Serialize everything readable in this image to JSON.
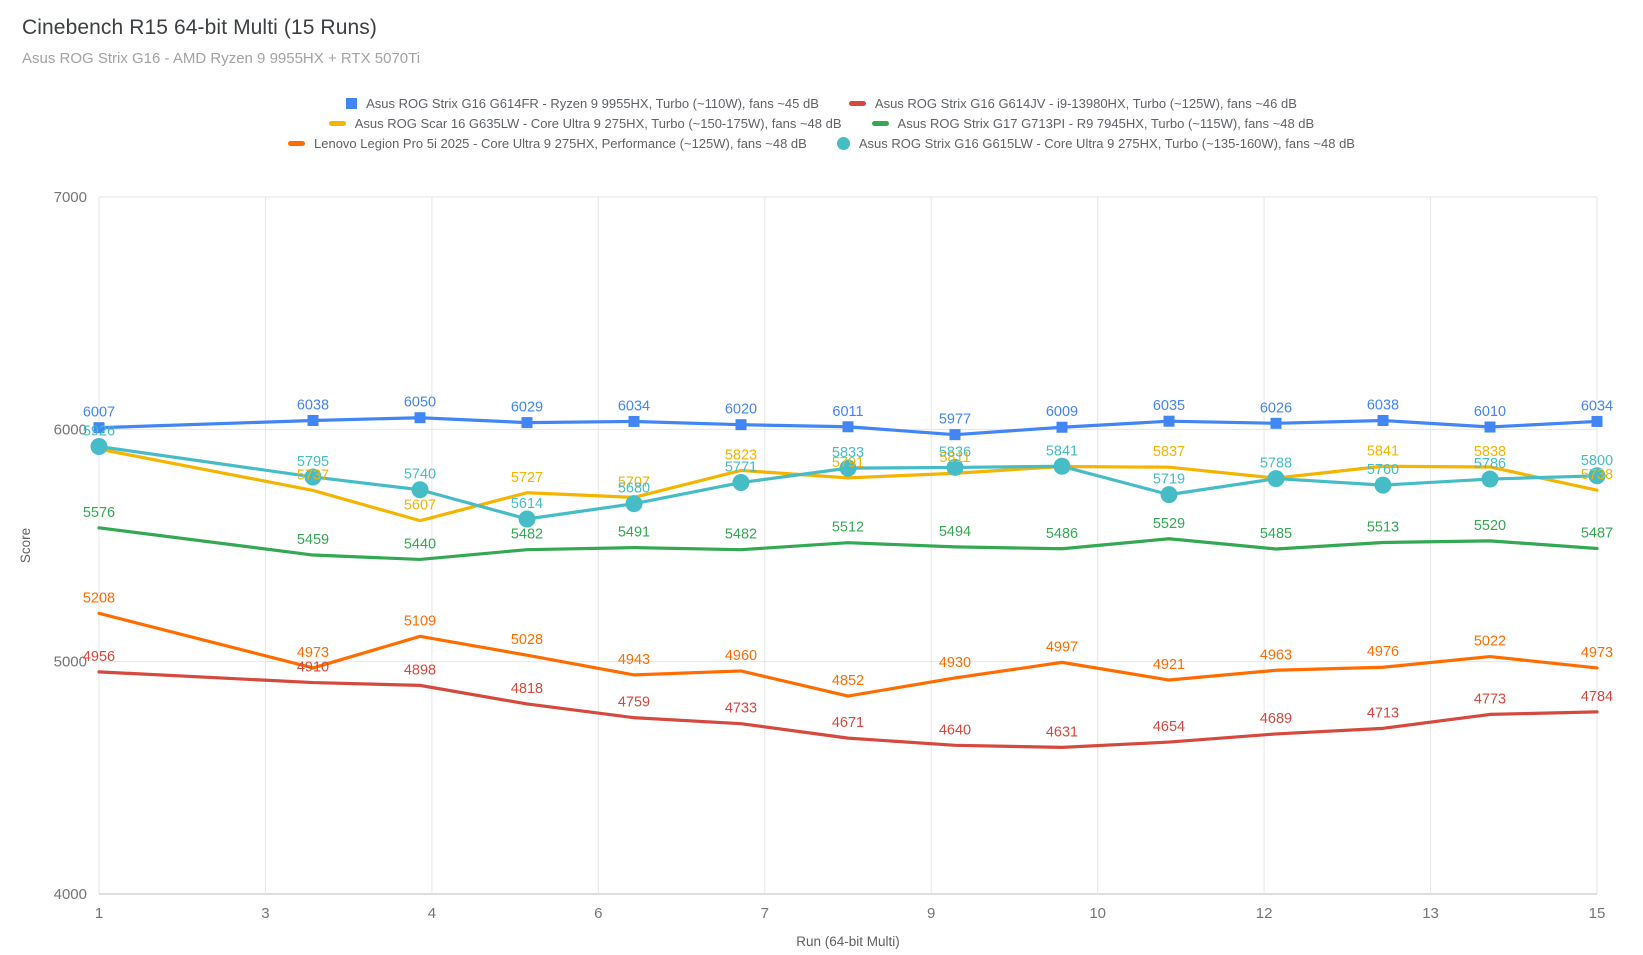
{
  "header": {
    "title": "Cinebench R15 64-bit Multi (15 Runs)",
    "subtitle": "Asus ROG Strix G16 - AMD Ryzen 9 9955HX + RTX 5070Ti"
  },
  "chart_data": {
    "type": "line",
    "title": "Cinebench R15 64-bit Multi (15 Runs)",
    "subtitle": "Asus ROG Strix G16 - AMD Ryzen 9 9955HX + RTX 5070Ti",
    "xlabel": "Run (64-bit Multi)",
    "ylabel": "Score",
    "x_min": 1,
    "x_max": 15,
    "y_min": 4000,
    "y_max": 7000,
    "y_ticks": [
      4000,
      5000,
      6000,
      7000
    ],
    "x_gridlines": [
      {
        "v": 1,
        "label": "1"
      },
      {
        "v": 2.5556,
        "label": "3"
      },
      {
        "v": 4.1111,
        "label": "4"
      },
      {
        "v": 5.6667,
        "label": "6"
      },
      {
        "v": 7.2222,
        "label": "7"
      },
      {
        "v": 8.7778,
        "label": "9"
      },
      {
        "v": 10.3333,
        "label": "10"
      },
      {
        "v": 11.8889,
        "label": "12"
      },
      {
        "v": 13.4444,
        "label": "13"
      },
      {
        "v": 15,
        "label": "15"
      }
    ],
    "runs": [
      1,
      3,
      4,
      5,
      6,
      7,
      8,
      9,
      10,
      11,
      12,
      13,
      14,
      15
    ],
    "note": "run 2 has no data point; labels for yellow series at runs 1, 10, 12 are hidden behind overlapping teal labels (values estimated from line position)",
    "draw_order": [
      1,
      4,
      3,
      2,
      5,
      0
    ],
    "series": [
      {
        "key": "g614fr",
        "name": "Asus ROG Strix G16 G614FR - Ryzen 9 9955HX, Turbo (~110W), fans ~45 dB",
        "color": "#4285f4",
        "marker": "square",
        "values": [
          6007,
          6038,
          6050,
          6029,
          6034,
          6020,
          6011,
          5977,
          6009,
          6035,
          6026,
          6038,
          6010,
          6034
        ],
        "hidden_label_runs": []
      },
      {
        "key": "g614jv",
        "name": "Asus ROG Strix G16 G614JV - i9-13980HX, Turbo (~125W), fans ~46 dB",
        "color": "#d5493e",
        "marker": "dash",
        "values": [
          4956,
          4910,
          4898,
          4818,
          4759,
          4733,
          4671,
          4640,
          4631,
          4654,
          4689,
          4713,
          4773,
          4784
        ],
        "hidden_label_runs": []
      },
      {
        "key": "g635lw",
        "name": "Asus ROG Scar 16 G635LW - Core Ultra 9 275HX, Turbo (~150-175W), fans ~48 dB",
        "color": "#f4b400",
        "marker": "dash",
        "values": [
          5915,
          5737,
          5607,
          5727,
          5707,
          5823,
          5791,
          5811,
          5840,
          5837,
          5790,
          5841,
          5838,
          5738
        ],
        "hidden_label_runs": [
          1,
          10,
          12
        ]
      },
      {
        "key": "g713pi",
        "name": "Asus ROG Strix G17 G713PI - R9 7945HX, Turbo (~115W), fans ~48 dB",
        "color": "#34a853",
        "marker": "dash",
        "values": [
          5576,
          5459,
          5440,
          5482,
          5491,
          5482,
          5512,
          5494,
          5486,
          5529,
          5485,
          5513,
          5520,
          5487
        ],
        "hidden_label_runs": []
      },
      {
        "key": "legion5i",
        "name": "Lenovo Legion Pro 5i 2025 - Core Ultra 9 275HX, Performance (~125W), fans ~48 dB",
        "color": "#ff6d01",
        "marker": "dash",
        "values": [
          5208,
          4973,
          5109,
          5028,
          4943,
          4960,
          4852,
          4930,
          4997,
          4921,
          4963,
          4976,
          5022,
          4973
        ],
        "hidden_label_runs": []
      },
      {
        "key": "g615lw",
        "name": "Asus ROG Strix G16 G615LW - Core Ultra 9 275HX, Turbo (~135-160W), fans ~48 dB",
        "color": "#46bdc6",
        "marker": "circle",
        "values": [
          5926,
          5795,
          5740,
          5614,
          5680,
          5771,
          5833,
          5836,
          5841,
          5719,
          5788,
          5760,
          5786,
          5800
        ],
        "hidden_label_runs": []
      }
    ],
    "legend_rows": [
      [
        0,
        1
      ],
      [
        2,
        3
      ],
      [
        4,
        5
      ]
    ],
    "grid_color": "#e6e6e6",
    "baseline_color": "#bdbdbd",
    "tick_label_color": "#757575",
    "axis_title_color": "#616161"
  }
}
